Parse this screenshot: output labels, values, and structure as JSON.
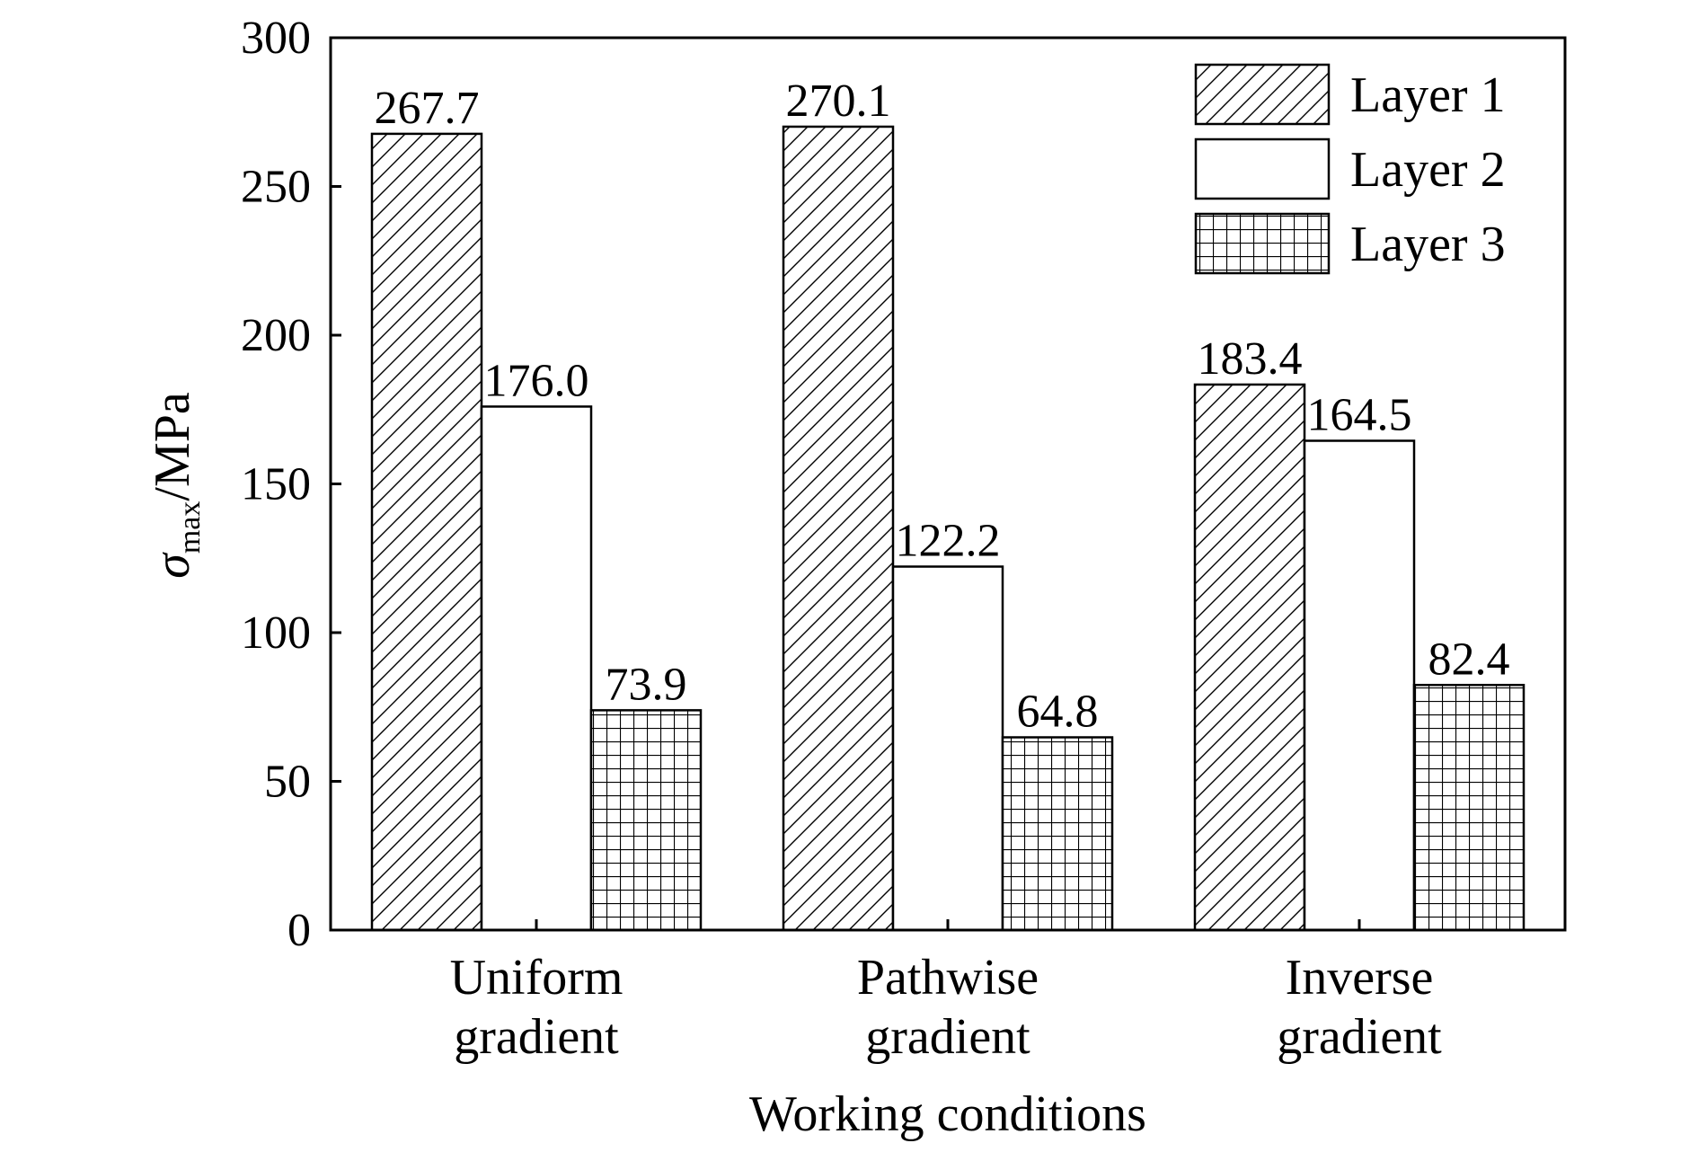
{
  "chart_data": {
    "type": "bar",
    "categories": [
      [
        "Uniform",
        "gradient"
      ],
      [
        "Pathwise",
        "gradient"
      ],
      [
        "Inverse",
        "gradient"
      ]
    ],
    "series": [
      {
        "name": "Layer 1",
        "pattern": "diagonal-hatch",
        "values": [
          267.7,
          270.1,
          183.4
        ],
        "labels": [
          "267.7",
          "270.1",
          "183.4"
        ]
      },
      {
        "name": "Layer 2",
        "pattern": "empty",
        "values": [
          176.0,
          122.2,
          164.5
        ],
        "labels": [
          "176.0",
          "122.2",
          "164.5"
        ]
      },
      {
        "name": "Layer 3",
        "pattern": "grid",
        "values": [
          73.9,
          64.8,
          82.4
        ],
        "labels": [
          "73.9",
          "64.8",
          "82.4"
        ]
      }
    ],
    "xlabel": "Working conditions",
    "ylabel": {
      "symbol": "σ",
      "subscript": "max",
      "unit": "/MPa"
    },
    "ylim": [
      0,
      300
    ],
    "yticks": [
      0,
      50,
      100,
      150,
      200,
      250,
      300
    ],
    "legend_position": "top-right",
    "grid": false,
    "colors": {
      "stroke": "#000000",
      "fill": "#ffffff"
    }
  }
}
